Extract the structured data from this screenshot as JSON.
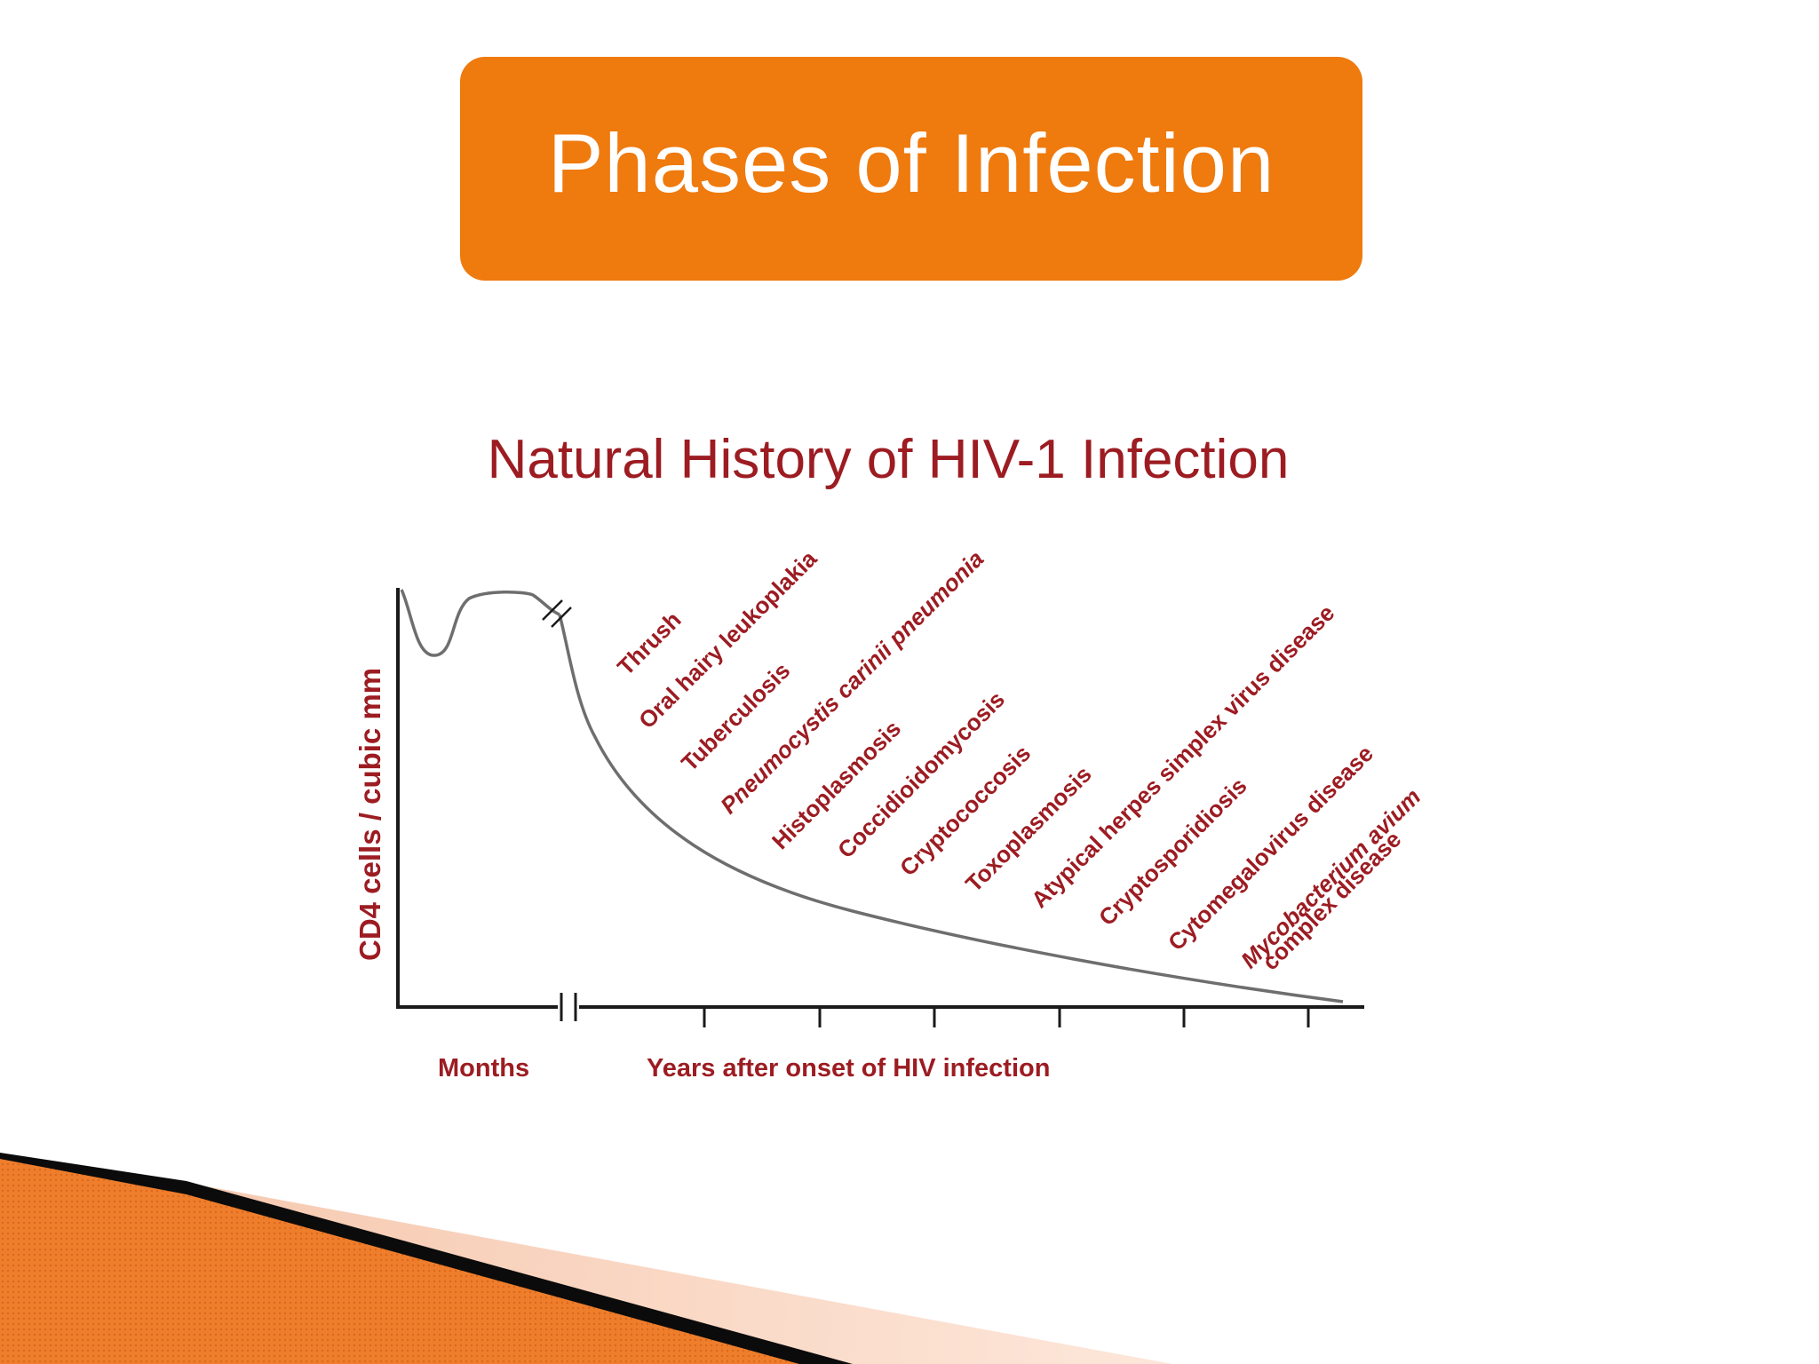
{
  "slide": {
    "title": "Phases of Infection",
    "colors": {
      "title_box": "#ef7a0e",
      "figure_text": "#9c1c22",
      "curve": "#6e6e6e",
      "axis": "#1a1a1a",
      "corner_orange": "#ee7d2c"
    }
  },
  "figure": {
    "title": "Natural History of HIV-1 Infection",
    "ylabel": "CD4 cells / cubic mm",
    "xlabel_months": "Months",
    "xlabel_years": "Years after onset of HIV infection",
    "diseases": [
      {
        "label": "Thrush",
        "italic": false
      },
      {
        "label": "Oral hairy leukoplakia",
        "italic": false
      },
      {
        "label": "Tuberculosis",
        "italic": false
      },
      {
        "label": "Pneumocystis carinii pneumonia",
        "italic": true
      },
      {
        "label": "Histoplasmosis",
        "italic": false
      },
      {
        "label": "Coccidioidomycosis",
        "italic": false
      },
      {
        "label": "Cryptococcosis",
        "italic": false
      },
      {
        "label": "Toxoplasmosis",
        "italic": false
      },
      {
        "label": "Atypical herpes simplex virus disease",
        "italic": false
      },
      {
        "label": "Cryptosporidiosis",
        "italic": false
      },
      {
        "label": "Cytomegalovirus disease",
        "italic": false
      },
      {
        "label": "Mycobacterium avium",
        "italic": true
      },
      {
        "label": "complex disease",
        "italic": false
      }
    ]
  }
}
